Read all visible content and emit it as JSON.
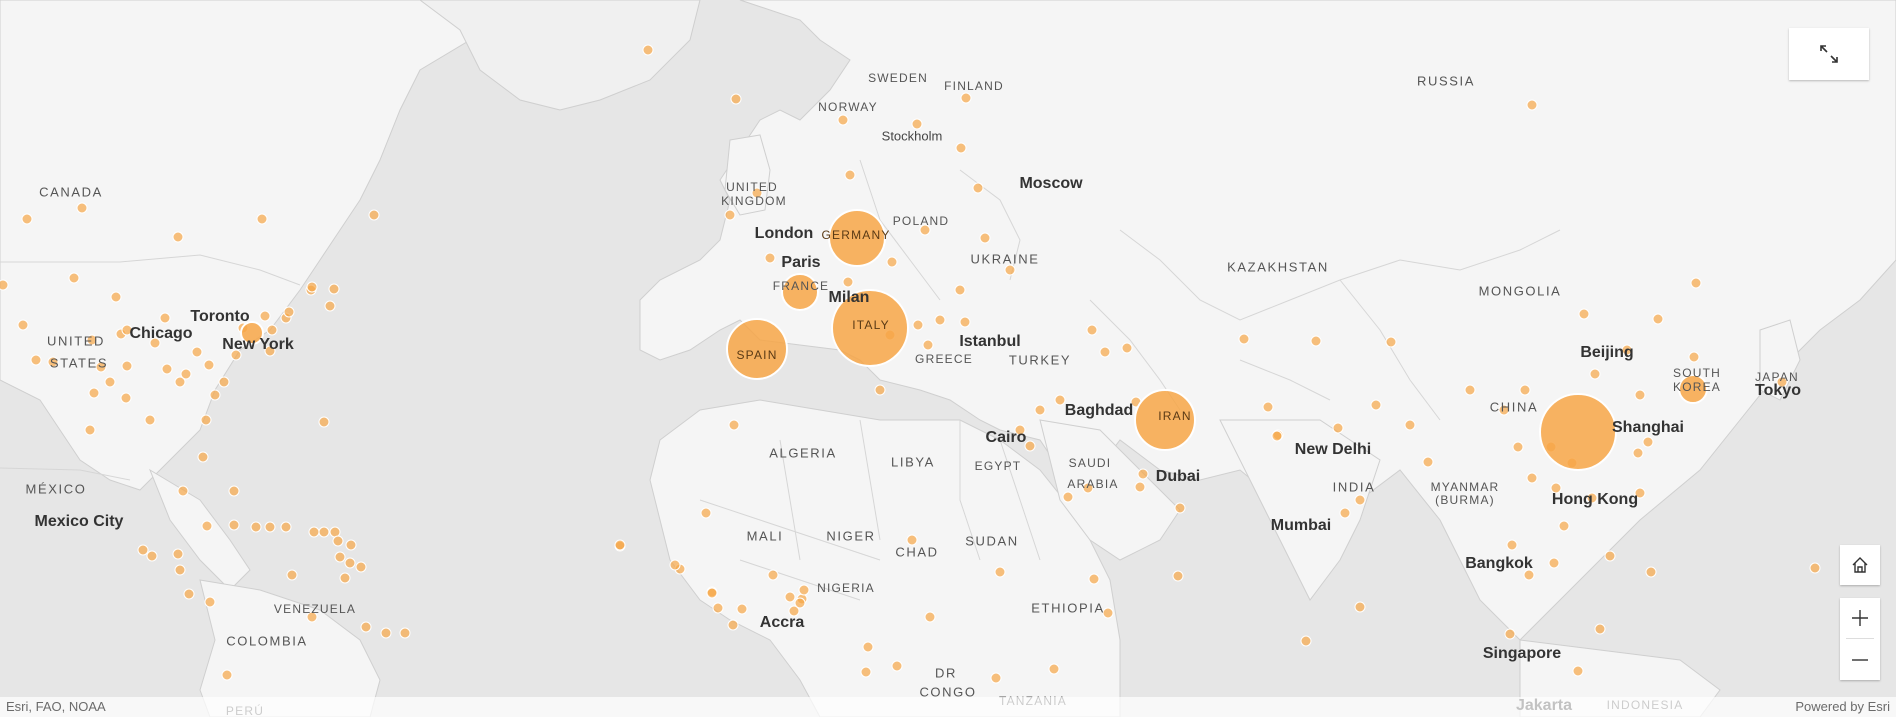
{
  "map": {
    "colors": {
      "ocean": "#e6e6e6",
      "land": "#f5f5f5",
      "border": "#c9c9c9",
      "circle_fill": "#f7a647",
      "circle_stroke": "#ffffff"
    },
    "labels": [
      {
        "id": "russia",
        "text": "RUSSIA",
        "kind": "country"
      },
      {
        "id": "sweden",
        "text": "SWEDEN",
        "kind": "country-sm"
      },
      {
        "id": "finland",
        "text": "FINLAND",
        "kind": "country-sm"
      },
      {
        "id": "norway",
        "text": "NORWAY",
        "kind": "country-sm"
      },
      {
        "id": "stockholm",
        "text": "Stockholm",
        "kind": "city-sm"
      },
      {
        "id": "moscow",
        "text": "Moscow",
        "kind": "city"
      },
      {
        "id": "canada",
        "text": "CANADA",
        "kind": "country"
      },
      {
        "id": "uk1",
        "text": "UNITED",
        "kind": "country-sm"
      },
      {
        "id": "uk2",
        "text": "KINGDOM",
        "kind": "country-sm"
      },
      {
        "id": "london",
        "text": "London",
        "kind": "city"
      },
      {
        "id": "germany",
        "text": "GERMANY",
        "kind": "country-sm-on"
      },
      {
        "id": "poland",
        "text": "POLAND",
        "kind": "country-sm"
      },
      {
        "id": "paris",
        "text": "Paris",
        "kind": "city"
      },
      {
        "id": "ukraine",
        "text": "UKRAINE",
        "kind": "country"
      },
      {
        "id": "kazakhstan",
        "text": "KAZAKHSTAN",
        "kind": "country"
      },
      {
        "id": "france",
        "text": "FRANCE",
        "kind": "country-sm"
      },
      {
        "id": "milan",
        "text": "Milan",
        "kind": "city"
      },
      {
        "id": "mongolia",
        "text": "MONGOLIA",
        "kind": "country"
      },
      {
        "id": "toronto",
        "text": "Toronto",
        "kind": "city"
      },
      {
        "id": "chicago",
        "text": "Chicago",
        "kind": "city"
      },
      {
        "id": "italy",
        "text": "ITALY",
        "kind": "country-sm-on"
      },
      {
        "id": "us1",
        "text": "UNITED",
        "kind": "country"
      },
      {
        "id": "us2",
        "text": "STATES",
        "kind": "country"
      },
      {
        "id": "newyork",
        "text": "New York",
        "kind": "city"
      },
      {
        "id": "istanbul",
        "text": "Istanbul",
        "kind": "city"
      },
      {
        "id": "spain",
        "text": "SPAIN",
        "kind": "country-sm-on"
      },
      {
        "id": "greece",
        "text": "GREECE",
        "kind": "country-sm"
      },
      {
        "id": "turkey",
        "text": "TURKEY",
        "kind": "country"
      },
      {
        "id": "beijing",
        "text": "Beijing",
        "kind": "city"
      },
      {
        "id": "southkorea1",
        "text": "SOUTH",
        "kind": "country-sm"
      },
      {
        "id": "southkorea2",
        "text": "KOREA",
        "kind": "country-sm"
      },
      {
        "id": "japan",
        "text": "JAPAN",
        "kind": "country-sm"
      },
      {
        "id": "tokyo",
        "text": "Tokyo",
        "kind": "city"
      },
      {
        "id": "china",
        "text": "CHINA",
        "kind": "country"
      },
      {
        "id": "baghdad",
        "text": "Baghdad",
        "kind": "city"
      },
      {
        "id": "iran",
        "text": "IRAN",
        "kind": "country-sm-on"
      },
      {
        "id": "shanghai",
        "text": "Shanghai",
        "kind": "city"
      },
      {
        "id": "cairo",
        "text": "Cairo",
        "kind": "city"
      },
      {
        "id": "newdelhi",
        "text": "New Delhi",
        "kind": "city"
      },
      {
        "id": "algeria",
        "text": "ALGERIA",
        "kind": "country"
      },
      {
        "id": "libya",
        "text": "LIBYA",
        "kind": "country"
      },
      {
        "id": "egypt",
        "text": "EGYPT",
        "kind": "country-sm"
      },
      {
        "id": "saudi1",
        "text": "SAUDI",
        "kind": "country-sm"
      },
      {
        "id": "saudi2",
        "text": "ARABIA",
        "kind": "country-sm"
      },
      {
        "id": "dubai",
        "text": "Dubai",
        "kind": "city"
      },
      {
        "id": "india",
        "text": "INDIA",
        "kind": "country"
      },
      {
        "id": "myanmar1",
        "text": "MYANMAR",
        "kind": "country-sm"
      },
      {
        "id": "myanmar2",
        "text": "(BURMA)",
        "kind": "country-sm"
      },
      {
        "id": "mexico",
        "text": "MÉXICO",
        "kind": "country"
      },
      {
        "id": "hongkong",
        "text": "Hong Kong",
        "kind": "city"
      },
      {
        "id": "mexicocity",
        "text": "Mexico City",
        "kind": "city"
      },
      {
        "id": "mumbai",
        "text": "Mumbai",
        "kind": "city"
      },
      {
        "id": "mali",
        "text": "MALI",
        "kind": "country"
      },
      {
        "id": "niger",
        "text": "NIGER",
        "kind": "country"
      },
      {
        "id": "sudan",
        "text": "SUDAN",
        "kind": "country"
      },
      {
        "id": "chad",
        "text": "CHAD",
        "kind": "country"
      },
      {
        "id": "bangkok",
        "text": "Bangkok",
        "kind": "city"
      },
      {
        "id": "nigeria",
        "text": "NIGERIA",
        "kind": "country-sm"
      },
      {
        "id": "venezuela",
        "text": "VENEZUELA",
        "kind": "country-sm"
      },
      {
        "id": "ethiopia",
        "text": "ETHIOPIA",
        "kind": "country"
      },
      {
        "id": "accra",
        "text": "Accra",
        "kind": "city"
      },
      {
        "id": "colombia",
        "text": "COLOMBIA",
        "kind": "country"
      },
      {
        "id": "singapore",
        "text": "Singapore",
        "kind": "city"
      },
      {
        "id": "dr",
        "text": "DR",
        "kind": "country"
      },
      {
        "id": "congo",
        "text": "CONGO",
        "kind": "country"
      },
      {
        "id": "tanzania",
        "text": "TANZANIA",
        "kind": "country-sm"
      },
      {
        "id": "jakarta",
        "text": "Jakarta",
        "kind": "city"
      },
      {
        "id": "indonesia",
        "text": "INDONESIA",
        "kind": "country-sm"
      },
      {
        "id": "peru",
        "text": "PERÚ",
        "kind": "country-sm"
      }
    ]
  },
  "controls": {
    "expand_icon": "expand-icon",
    "home_icon": "home-icon",
    "zoom_in_icon": "plus-icon",
    "zoom_out_icon": "minus-icon"
  },
  "attribution": {
    "left": "Esri, FAO, NOAA",
    "right": "Powered by Esri"
  }
}
